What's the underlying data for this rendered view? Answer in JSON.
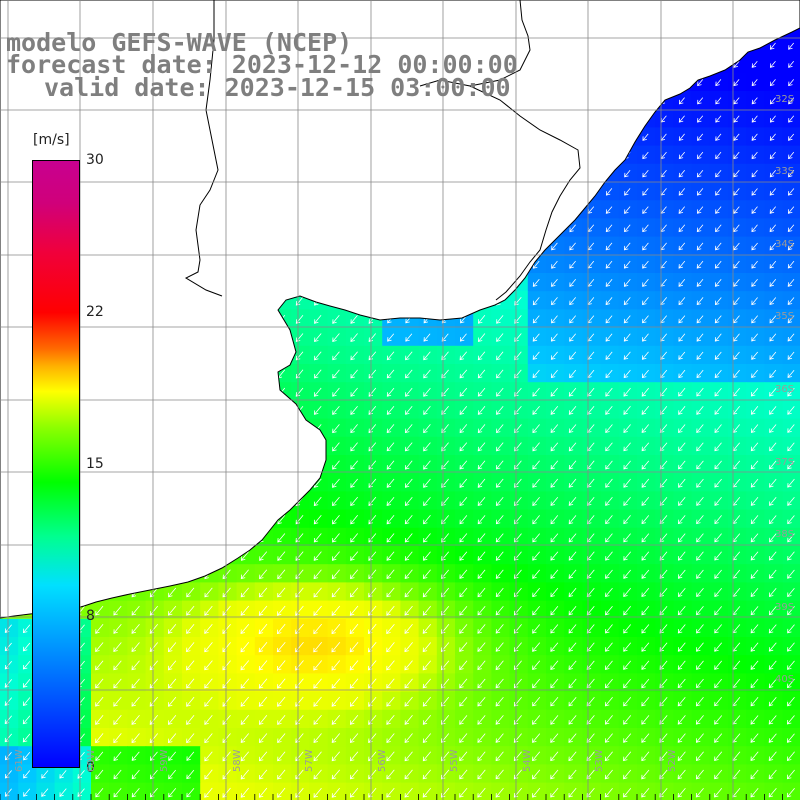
{
  "map": {
    "title": {
      "model": "modelo GEFS-WAVE (NCEP)",
      "forecast_date": "forecast date: 2023-12-12 00:00:00",
      "valid_date": "valid date: 2023-12-15 03:00:00"
    },
    "variable_unit": "[m/s]",
    "colorbar": {
      "ticks": [
        "30",
        "22",
        "15",
        "8",
        "0"
      ],
      "tick_values": [
        30,
        22,
        15,
        8,
        0
      ],
      "min": 0,
      "max": 30,
      "stops": [
        "#0000ff",
        "#0078ff",
        "#00e0ff",
        "#00ff90",
        "#00ff00",
        "#8cff00",
        "#ffff00",
        "#ffb400",
        "#ff6a00",
        "#ff0000",
        "#f0003c",
        "#c80090"
      ]
    },
    "lat_labels": [
      "32S",
      "33S",
      "34S",
      "35S",
      "36S",
      "37S",
      "38S",
      "39S",
      "40S"
    ],
    "lon_labels": [
      "61W",
      "60W",
      "59W",
      "58W",
      "57W",
      "56W",
      "55W",
      "54W",
      "53W",
      "52W"
    ],
    "land_color": "#ffffff",
    "grid_color": "#888888",
    "arrow_color": "#ffffff",
    "wind_direction": "toward southwest"
  }
}
